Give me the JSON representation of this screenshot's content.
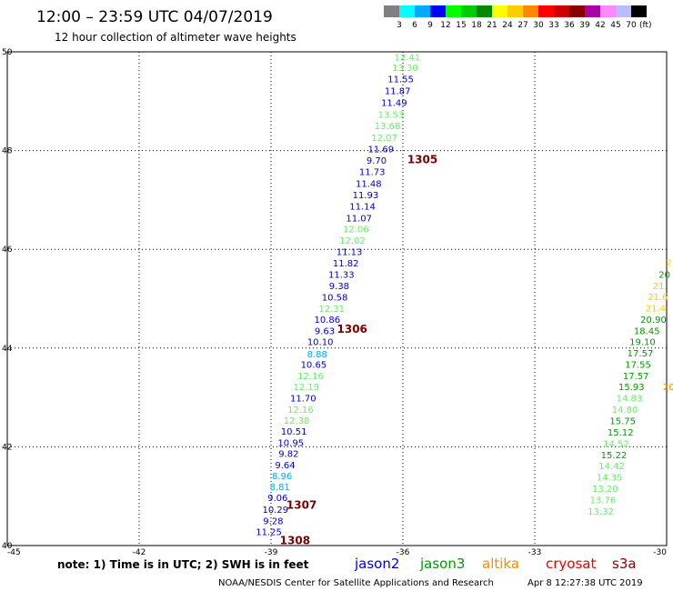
{
  "header": {
    "title": "12:00 – 23:59 UTC 04/07/2019",
    "subtitle": "12 hour collection of altimeter wave heights"
  },
  "legend": {
    "unit": "(ft)",
    "colors": [
      "#808080",
      "#00ffff",
      "#00aaff",
      "#0000ff",
      "#00ff00",
      "#00cc00",
      "#008800",
      "#ffff00",
      "#ffcc00",
      "#ff8800",
      "#ff0000",
      "#cc0000",
      "#880000",
      "#aa00aa",
      "#ff88ff",
      "#bbbbff",
      "#000000"
    ],
    "labels": [
      "3",
      "6",
      "9",
      "12",
      "15",
      "18",
      "21",
      "24",
      "27",
      "30",
      "33",
      "36",
      "39",
      "42",
      "45",
      "70"
    ]
  },
  "footer": {
    "note": "note: 1) Time is in UTC; 2) SWH is in feet",
    "credit": "NOAA/NESDIS Center for Satellite Applications and Research",
    "timestamp": "Apr  8 12:27:38 UTC 2019"
  },
  "satellites": [
    {
      "name": "jason2",
      "color": "#0000dd"
    },
    {
      "name": "jason3",
      "color": "#009900"
    },
    {
      "name": "altika",
      "color": "#ff8800"
    },
    {
      "name": "cryosat",
      "color": "#ee0000"
    },
    {
      "name": "s3a",
      "color": "#880000"
    }
  ],
  "chart_data": {
    "type": "scatter",
    "title": "12:00 – 23:59 UTC 04/07/2019",
    "subtitle": "12 hour collection of altimeter wave heights",
    "xlim": [
      -45,
      -30
    ],
    "ylim": [
      40,
      50
    ],
    "xticks": [
      -45,
      -42,
      -39,
      -36,
      -33,
      -30
    ],
    "yticks": [
      40,
      42,
      44,
      46,
      48,
      50
    ],
    "grid": true,
    "value_unit": "ft",
    "time_labels": [
      {
        "label": "1305",
        "lon": -35.9,
        "lat": 47.82
      },
      {
        "label": "1306",
        "lon": -37.5,
        "lat": 44.38
      },
      {
        "label": "1307",
        "lon": -38.65,
        "lat": 40.82
      },
      {
        "label": "1308",
        "lon": -38.8,
        "lat": 40.1
      }
    ],
    "tracks": [
      {
        "points": [
          {
            "lon": -35.9,
            "lat": 49.9,
            "v": "12.41",
            "c": "#66ee66"
          },
          {
            "lon": -35.95,
            "lat": 49.69,
            "v": "13.30",
            "c": "#66ee66"
          },
          {
            "lon": -36.05,
            "lat": 49.46,
            "v": "11.55",
            "c": "#0000cc"
          },
          {
            "lon": -36.12,
            "lat": 49.22,
            "v": "11.87",
            "c": "#0000cc"
          },
          {
            "lon": -36.2,
            "lat": 48.98,
            "v": "11.49",
            "c": "#0000cc"
          },
          {
            "lon": -36.27,
            "lat": 48.74,
            "v": "13.53",
            "c": "#66ee66"
          },
          {
            "lon": -36.35,
            "lat": 48.51,
            "v": "13.68",
            "c": "#66ee66"
          },
          {
            "lon": -36.42,
            "lat": 48.27,
            "v": "12.07",
            "c": "#66ee66"
          },
          {
            "lon": -36.5,
            "lat": 48.04,
            "v": "11.69",
            "c": "#0000cc"
          },
          {
            "lon": -36.6,
            "lat": 47.81,
            "v": "9.70",
            "c": "#0000cc"
          },
          {
            "lon": -36.7,
            "lat": 47.58,
            "v": "11.73",
            "c": "#0000cc"
          },
          {
            "lon": -36.78,
            "lat": 47.34,
            "v": "11.48",
            "c": "#0000cc"
          },
          {
            "lon": -36.85,
            "lat": 47.11,
            "v": "11.93",
            "c": "#0000cc"
          },
          {
            "lon": -36.92,
            "lat": 46.88,
            "v": "11.14",
            "c": "#0000cc"
          },
          {
            "lon": -37.0,
            "lat": 46.64,
            "v": "11.07",
            "c": "#0000cc"
          },
          {
            "lon": -37.07,
            "lat": 46.42,
            "v": "12.06",
            "c": "#66ee66"
          },
          {
            "lon": -37.15,
            "lat": 46.19,
            "v": "12.02",
            "c": "#66ee66"
          },
          {
            "lon": -37.22,
            "lat": 45.96,
            "v": "11.13",
            "c": "#0000cc"
          },
          {
            "lon": -37.3,
            "lat": 45.73,
            "v": "11.82",
            "c": "#0000cc"
          },
          {
            "lon": -37.4,
            "lat": 45.5,
            "v": "11.33",
            "c": "#0000cc"
          },
          {
            "lon": -37.45,
            "lat": 45.27,
            "v": "9.38",
            "c": "#0000cc"
          },
          {
            "lon": -37.55,
            "lat": 45.04,
            "v": "10.58",
            "c": "#0000cc"
          },
          {
            "lon": -37.62,
            "lat": 44.81,
            "v": "12.31",
            "c": "#66ee66"
          },
          {
            "lon": -37.72,
            "lat": 44.59,
            "v": "10.86",
            "c": "#0000cc"
          },
          {
            "lon": -37.78,
            "lat": 44.36,
            "v": "9.63",
            "c": "#0000cc"
          },
          {
            "lon": -37.88,
            "lat": 44.13,
            "v": "10.10",
            "c": "#0000cc"
          },
          {
            "lon": -37.95,
            "lat": 43.89,
            "v": "8.88",
            "c": "#00aaff"
          },
          {
            "lon": -38.03,
            "lat": 43.67,
            "v": "10.65",
            "c": "#0000cc"
          },
          {
            "lon": -38.1,
            "lat": 43.44,
            "v": "12.16",
            "c": "#66ee66"
          },
          {
            "lon": -38.2,
            "lat": 43.22,
            "v": "12.19",
            "c": "#66ee66"
          },
          {
            "lon": -38.27,
            "lat": 42.99,
            "v": "11.70",
            "c": "#0000cc"
          },
          {
            "lon": -38.33,
            "lat": 42.76,
            "v": "12.16",
            "c": "#66ee66"
          },
          {
            "lon": -38.42,
            "lat": 42.54,
            "v": "12.38",
            "c": "#66ee66"
          },
          {
            "lon": -38.48,
            "lat": 42.32,
            "v": "10.51",
            "c": "#0000cc"
          },
          {
            "lon": -38.55,
            "lat": 42.09,
            "v": "10.95",
            "c": "#0000cc"
          },
          {
            "lon": -38.6,
            "lat": 41.87,
            "v": "9.82",
            "c": "#0000cc"
          },
          {
            "lon": -38.68,
            "lat": 41.64,
            "v": "9.64",
            "c": "#0000cc"
          },
          {
            "lon": -38.75,
            "lat": 41.42,
            "v": "8.96",
            "c": "#00aaff"
          },
          {
            "lon": -38.8,
            "lat": 41.2,
            "v": "8.81",
            "c": "#00aaff"
          },
          {
            "lon": -38.85,
            "lat": 40.98,
            "v": "9.06",
            "c": "#0000cc"
          },
          {
            "lon": -38.9,
            "lat": 40.74,
            "v": "10.29",
            "c": "#0000cc"
          },
          {
            "lon": -38.95,
            "lat": 40.51,
            "v": "9.28",
            "c": "#0000cc"
          },
          {
            "lon": -39.05,
            "lat": 40.29,
            "v": "11.25",
            "c": "#0000cc"
          }
        ]
      },
      {
        "points": [
          {
            "lon": -29.95,
            "lat": 45.74,
            "v": "2",
            "c": "#ffcc00"
          },
          {
            "lon": -30.05,
            "lat": 45.5,
            "v": "20",
            "c": "#009900"
          },
          {
            "lon": -30.15,
            "lat": 45.27,
            "v": "21.",
            "c": "#ffcc00"
          },
          {
            "lon": -30.2,
            "lat": 45.05,
            "v": "21.6",
            "c": "#ffcc00"
          },
          {
            "lon": -30.25,
            "lat": 44.82,
            "v": "21.4",
            "c": "#ffcc00"
          },
          {
            "lon": -30.3,
            "lat": 44.59,
            "v": "20.90",
            "c": "#009900"
          },
          {
            "lon": -30.45,
            "lat": 44.36,
            "v": "18.45",
            "c": "#009900"
          },
          {
            "lon": -30.55,
            "lat": 44.13,
            "v": "19.10",
            "c": "#009900"
          },
          {
            "lon": -30.6,
            "lat": 43.9,
            "v": "17.57",
            "c": "#009900"
          },
          {
            "lon": -30.65,
            "lat": 43.67,
            "v": "17.55",
            "c": "#009900"
          },
          {
            "lon": -30.7,
            "lat": 43.44,
            "v": "17.57",
            "c": "#009900"
          },
          {
            "lon": -30.8,
            "lat": 43.22,
            "v": "15.93",
            "c": "#009900"
          },
          {
            "lon": -30.85,
            "lat": 42.99,
            "v": "14.83",
            "c": "#66ee66"
          },
          {
            "lon": -30.95,
            "lat": 42.76,
            "v": "14.80",
            "c": "#66ee66"
          },
          {
            "lon": -31.0,
            "lat": 42.53,
            "v": "15.75",
            "c": "#009900"
          },
          {
            "lon": -31.05,
            "lat": 42.3,
            "v": "15.12",
            "c": "#009900"
          },
          {
            "lon": -31.15,
            "lat": 42.07,
            "v": "14.52",
            "c": "#66ee66"
          },
          {
            "lon": -31.2,
            "lat": 41.84,
            "v": "15.22",
            "c": "#009900"
          },
          {
            "lon": -31.25,
            "lat": 41.62,
            "v": "14.42",
            "c": "#66ee66"
          },
          {
            "lon": -31.3,
            "lat": 41.39,
            "v": "14.35",
            "c": "#66ee66"
          },
          {
            "lon": -31.4,
            "lat": 41.16,
            "v": "13.20",
            "c": "#66ee66"
          },
          {
            "lon": -31.45,
            "lat": 40.93,
            "v": "13.76",
            "c": "#66ee66"
          },
          {
            "lon": -31.5,
            "lat": 40.7,
            "v": "13.32",
            "c": "#66ee66"
          }
        ]
      },
      {
        "points": [
          {
            "lon": -29.95,
            "lat": 43.22,
            "v": "20",
            "c": "#ff8800"
          }
        ]
      }
    ]
  }
}
